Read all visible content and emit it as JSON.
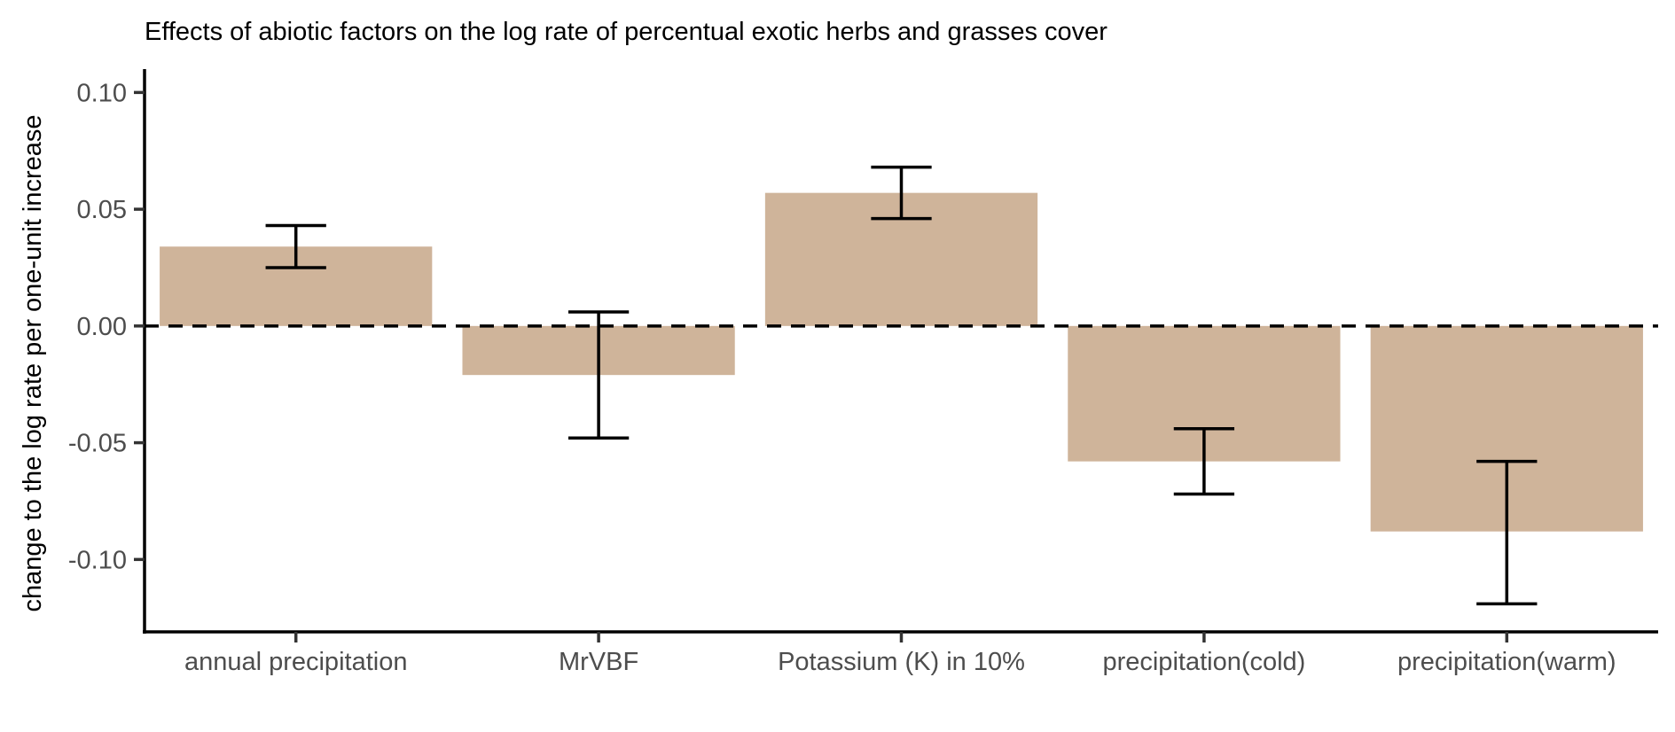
{
  "chart_data": {
    "type": "bar",
    "title": "Effects of abiotic factors on the log rate of percentual exotic herbs and grasses cover",
    "xlabel": "",
    "ylabel": "change to the log rate per one-unit increase",
    "categories": [
      "annual precipitation",
      "MrVBF",
      "Potassium (K) in 10%",
      "precipitation(cold)",
      "precipitation(warm)"
    ],
    "values": [
      0.034,
      -0.021,
      0.057,
      -0.058,
      -0.088
    ],
    "error_low": [
      0.025,
      -0.048,
      0.046,
      -0.072,
      -0.119
    ],
    "error_high": [
      0.043,
      0.006,
      0.068,
      -0.044,
      -0.058
    ],
    "ylim": [
      -0.131,
      0.11
    ],
    "yticks": [
      0.1,
      0.05,
      0.0,
      -0.05,
      -0.1
    ],
    "ytick_labels": [
      "0.10",
      "0.05",
      "0.00",
      "-0.05",
      "-0.10"
    ],
    "reference_line": 0,
    "grid": false,
    "legend": "none",
    "colors": {
      "bar": "#cfb49a",
      "axis": "#000000",
      "tick_label": "#4d4d4d"
    }
  }
}
